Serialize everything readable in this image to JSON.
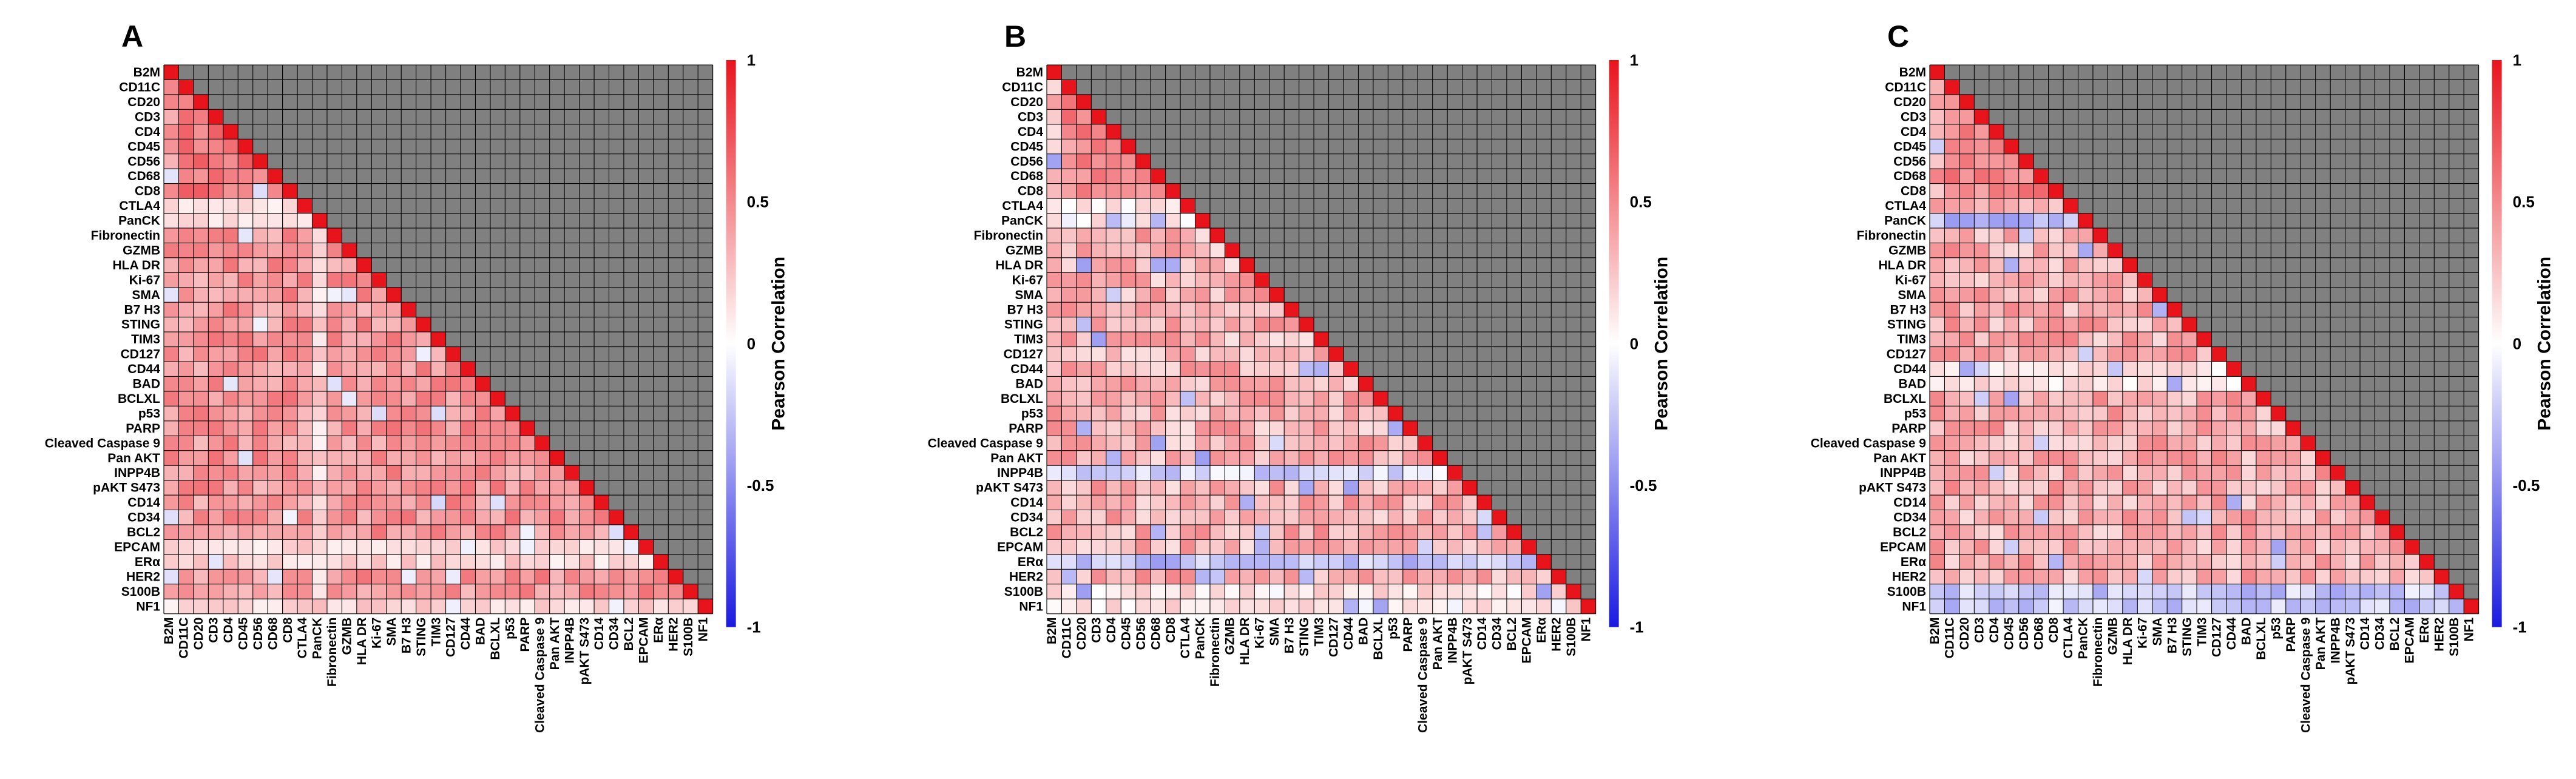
{
  "figure": {
    "colorbar": {
      "label": "Pearson Correlation",
      "range": [
        -1,
        1
      ],
      "ticks": [
        {
          "value": 1,
          "label": "1"
        },
        {
          "value": 0.5,
          "label": "0.5"
        },
        {
          "value": 0,
          "label": "0"
        },
        {
          "value": -0.5,
          "label": "-0.5"
        },
        {
          "value": -1,
          "label": "-1"
        }
      ],
      "colors": {
        "positive": "#e8141c",
        "zero": "#ffffff",
        "negative": "#1a1ae0",
        "masked": "#808080",
        "grid": "#000000"
      }
    }
  },
  "chart_data": [
    {
      "type": "heatmap",
      "panel_label": "A",
      "title": "",
      "markers": [
        "B2M",
        "CD11C",
        "CD20",
        "CD3",
        "CD4",
        "CD45",
        "CD56",
        "CD68",
        "CD8",
        "CTLA4",
        "PanCK",
        "Fibronectin",
        "GZMB",
        "HLA DR",
        "Ki-67",
        "SMA",
        "B7 H3",
        "STING",
        "TIM3",
        "CD127",
        "CD44",
        "BAD",
        "BCLXL",
        "p53",
        "PARP",
        "Cleaved Caspase 9",
        "Pan AKT",
        "INPP4B",
        "pAKT S473",
        "CD14",
        "CD34",
        "BCL2",
        "EPCAM",
        "ERα",
        "HER2",
        "S100B",
        "NF1"
      ],
      "lower_triangle_only": true,
      "upper_triangle": "masked",
      "diagonal_value": 1,
      "approx_off_diagonal_range": [
        -0.2,
        0.7
      ],
      "values": "estimated per-cell correlations (lower triangle); mostly positive, 0.2–0.6"
    },
    {
      "type": "heatmap",
      "panel_label": "B",
      "title": "",
      "markers": [
        "B2M",
        "CD11C",
        "CD20",
        "CD3",
        "CD4",
        "CD45",
        "CD56",
        "CD68",
        "CD8",
        "CTLA4",
        "PanCK",
        "Fibronectin",
        "GZMB",
        "HLA DR",
        "Ki-67",
        "SMA",
        "B7 H3",
        "STING",
        "TIM3",
        "CD127",
        "CD44",
        "BAD",
        "BCLXL",
        "p53",
        "PARP",
        "Cleaved Caspase 9",
        "Pan AKT",
        "INPP4B",
        "pAKT S473",
        "CD14",
        "CD34",
        "BCL2",
        "EPCAM",
        "ERα",
        "HER2",
        "S100B",
        "NF1"
      ],
      "lower_triangle_only": true,
      "upper_triangle": "masked",
      "diagonal_value": 1,
      "approx_off_diagonal_range": [
        -0.5,
        0.7
      ],
      "values": "estimated per-cell correlations (lower triangle); mixed, negative band at INPP4B / ERα rows"
    },
    {
      "type": "heatmap",
      "panel_label": "C",
      "title": "",
      "markers": [
        "B2M",
        "CD11C",
        "CD20",
        "CD3",
        "CD4",
        "CD45",
        "CD56",
        "CD68",
        "CD8",
        "CTLA4",
        "PanCK",
        "Fibronectin",
        "GZMB",
        "HLA DR",
        "Ki-67",
        "SMA",
        "B7 H3",
        "STING",
        "TIM3",
        "CD127",
        "CD44",
        "BAD",
        "BCLXL",
        "p53",
        "PARP",
        "Cleaved Caspase 9",
        "Pan AKT",
        "INPP4B",
        "pAKT S473",
        "CD14",
        "CD34",
        "BCL2",
        "EPCAM",
        "ERα",
        "HER2",
        "S100B",
        "NF1"
      ],
      "lower_triangle_only": true,
      "upper_triangle": "masked",
      "diagonal_value": 1,
      "approx_off_diagonal_range": [
        -0.5,
        0.7
      ],
      "values": "estimated per-cell correlations (lower triangle); negative cells at PanCK and S100B/NF1 rows"
    }
  ]
}
